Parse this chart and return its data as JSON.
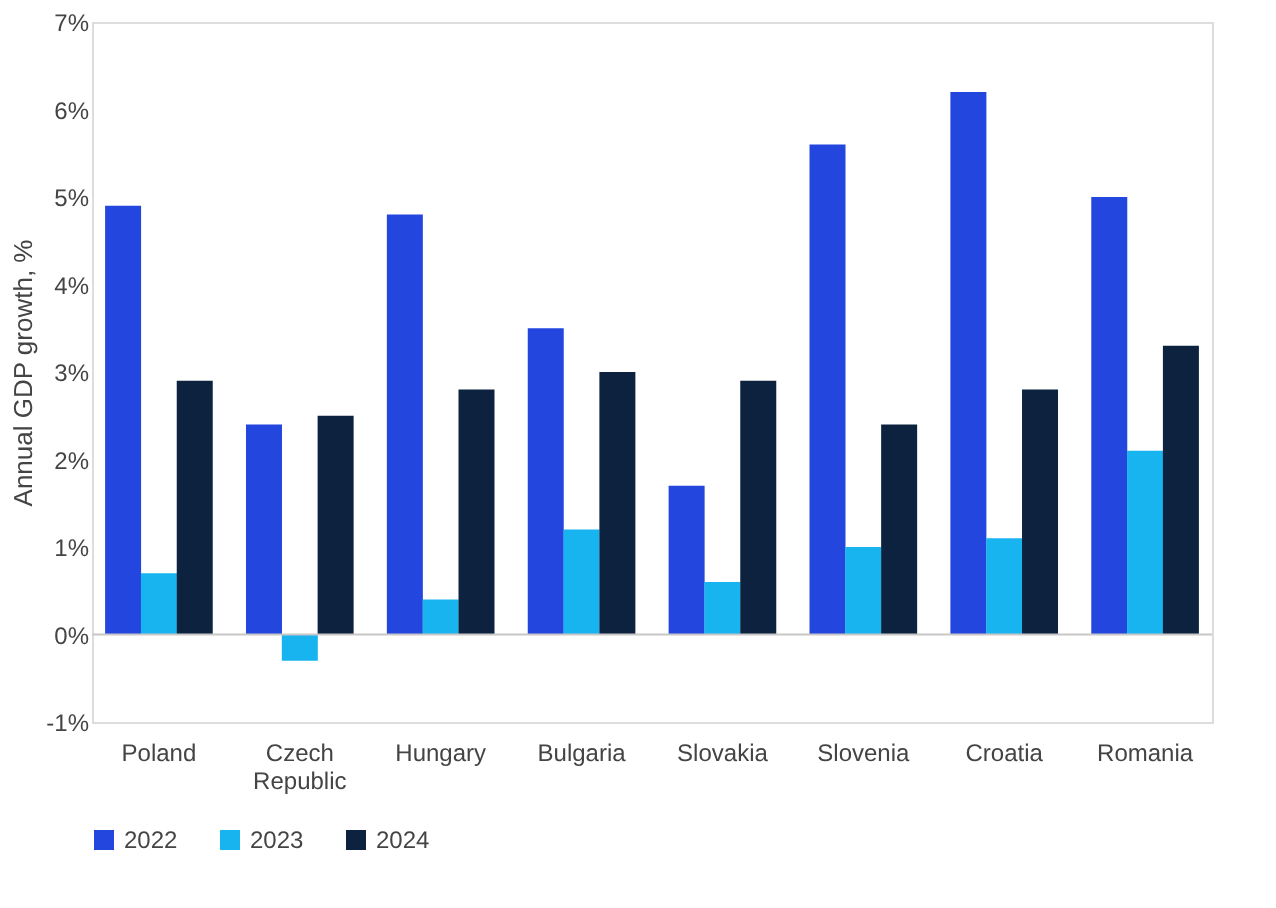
{
  "chart_data": {
    "type": "bar",
    "ylabel": "Annual GDP growth, %",
    "categories": [
      "Poland",
      "Czech Republic",
      "Hungary",
      "Bulgaria",
      "Slovakia",
      "Slovenia",
      "Croatia",
      "Romania"
    ],
    "series": [
      {
        "name": "2022",
        "color": "#2346df",
        "values": [
          4.9,
          2.4,
          4.8,
          3.5,
          1.7,
          5.6,
          6.2,
          5.0
        ]
      },
      {
        "name": "2023",
        "color": "#18b4ef",
        "values": [
          0.7,
          -0.3,
          0.4,
          1.2,
          0.6,
          1.0,
          1.1,
          2.1
        ]
      },
      {
        "name": "2024",
        "color": "#0c223f",
        "values": [
          2.9,
          2.5,
          2.8,
          3.0,
          2.9,
          2.4,
          2.8,
          3.3
        ]
      }
    ],
    "ylim": [
      -1,
      7
    ],
    "yticks": [
      {
        "value": -1,
        "label": "-1%"
      },
      {
        "value": 0,
        "label": "0%"
      },
      {
        "value": 1,
        "label": "1%"
      },
      {
        "value": 2,
        "label": "2%"
      },
      {
        "value": 3,
        "label": "3%"
      },
      {
        "value": 4,
        "label": "4%"
      },
      {
        "value": 5,
        "label": "5%"
      },
      {
        "value": 6,
        "label": "6%"
      },
      {
        "value": 7,
        "label": "7%"
      }
    ],
    "ref_lines": [
      {
        "axis": "y",
        "value": 0,
        "color": "#c8c8c8"
      }
    ],
    "grid": false,
    "legend": "bottom left"
  }
}
